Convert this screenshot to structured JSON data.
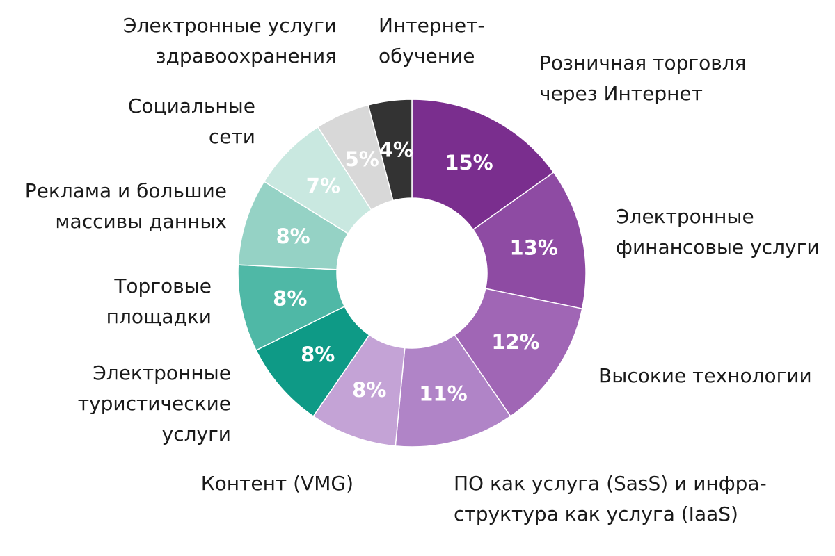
{
  "chart_data": {
    "type": "pie",
    "donut": true,
    "legend": "none",
    "unit": "%",
    "slices": [
      {
        "label": [
          "Розничная торговля",
          "через Интернет"
        ],
        "value": 15,
        "value_label": "15%",
        "color": "#7a2e8e"
      },
      {
        "label": [
          "Электронные",
          "финансовые услуги"
        ],
        "value": 13,
        "value_label": "13%",
        "color": "#8e4ba3"
      },
      {
        "label": [
          "Высокие технологии"
        ],
        "value": 12,
        "value_label": "12%",
        "color": "#a066b5"
      },
      {
        "label": [
          "ПО как услуга (SasS) и инфра-",
          "структура как услуга (IaaS)"
        ],
        "value": 11,
        "value_label": "11%",
        "color": "#b084c7"
      },
      {
        "label": [
          "Контент (VMG)"
        ],
        "value": 8,
        "value_label": "8%",
        "color": "#c4a3d6"
      },
      {
        "label": [
          "Электронные",
          "туристические",
          "услуги"
        ],
        "value": 8,
        "value_label": "8%",
        "color": "#0e9a86"
      },
      {
        "label": [
          "Торговые",
          "площадки"
        ],
        "value": 8,
        "value_label": "8%",
        "color": "#4fb8a6"
      },
      {
        "label": [
          "Реклама и большие",
          "массивы данных"
        ],
        "value": 8,
        "value_label": "8%",
        "color": "#95d2c5"
      },
      {
        "label": [
          "Социальные",
          "сети"
        ],
        "value": 7,
        "value_label": "7%",
        "color": "#c9e8e0"
      },
      {
        "label": [
          "Электронные услуги",
          "здравоохранения"
        ],
        "value": 5,
        "value_label": "5%",
        "color": "#d8d8d8"
      },
      {
        "label": [
          "Интернет-",
          "обучение"
        ],
        "value": 4,
        "value_label": "4%",
        "color": "#333333"
      }
    ]
  }
}
